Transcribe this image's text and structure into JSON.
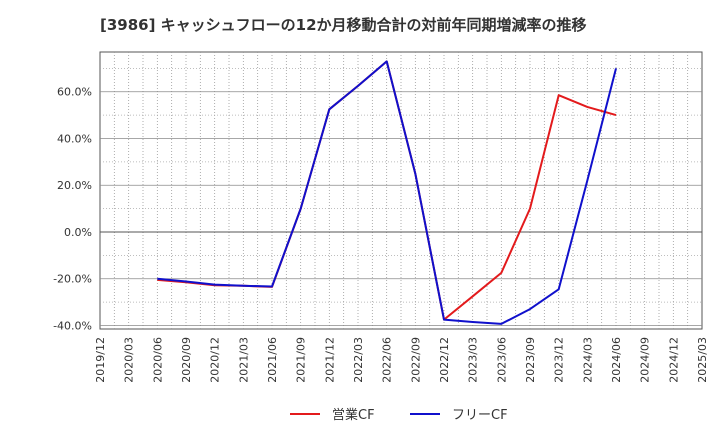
{
  "chart_data": {
    "type": "line",
    "title": "[3986]  キャッシュフローの12か月移動合計の対前年同期増減率の推移",
    "x_categories": [
      "2019/12",
      "2020/03",
      "2020/06",
      "2020/09",
      "2020/12",
      "2021/03",
      "2021/06",
      "2021/09",
      "2021/12",
      "2022/03",
      "2022/06",
      "2022/09",
      "2022/12",
      "2023/03",
      "2023/06",
      "2023/09",
      "2023/12",
      "2024/03",
      "2024/06",
      "2024/09",
      "2024/12",
      "2025/03"
    ],
    "y_tick_labels": [
      "-40.0%",
      "-20.0%",
      "0.0%",
      "20.0%",
      "40.0%",
      "60.0%"
    ],
    "y_ticks": [
      -40,
      -20,
      0,
      20,
      40,
      60
    ],
    "ylim": [
      -41.5,
      77
    ],
    "grid": true,
    "legend_position": "bottom-center",
    "series": [
      {
        "name": "営業CF",
        "color": "#e31a1c",
        "points": [
          {
            "x": "2020/06",
            "y": -20.5
          },
          {
            "x": "2020/09",
            "y": -21.5
          },
          {
            "x": "2020/12",
            "y": -22.8
          },
          {
            "x": "2021/03",
            "y": -23.0
          },
          {
            "x": "2021/06",
            "y": -23.5
          },
          {
            "x": "2021/09",
            "y": 10.0
          },
          {
            "x": "2021/12",
            "y": 52.5
          },
          {
            "x": "2022/03",
            "y": 62.5
          },
          {
            "x": "2022/06",
            "y": 73.0
          },
          {
            "x": "2022/09",
            "y": 25.0
          },
          {
            "x": "2022/12",
            "y": -37.5
          },
          {
            "x": "2023/03",
            "y": -27.5
          },
          {
            "x": "2023/06",
            "y": -17.5
          },
          {
            "x": "2023/09",
            "y": 10.0
          },
          {
            "x": "2023/12",
            "y": 58.5
          },
          {
            "x": "2024/03",
            "y": 53.5
          },
          {
            "x": "2024/06",
            "y": 50.0
          }
        ]
      },
      {
        "name": "フリーCF",
        "color": "#1010cc",
        "points": [
          {
            "x": "2020/06",
            "y": -20.0
          },
          {
            "x": "2020/09",
            "y": -21.2
          },
          {
            "x": "2020/12",
            "y": -22.5
          },
          {
            "x": "2021/03",
            "y": -23.0
          },
          {
            "x": "2021/06",
            "y": -23.3
          },
          {
            "x": "2021/09",
            "y": 10.0
          },
          {
            "x": "2021/12",
            "y": 52.5
          },
          {
            "x": "2022/03",
            "y": 62.5
          },
          {
            "x": "2022/06",
            "y": 73.0
          },
          {
            "x": "2022/09",
            "y": 25.0
          },
          {
            "x": "2022/12",
            "y": -37.5
          },
          {
            "x": "2023/03",
            "y": -38.5
          },
          {
            "x": "2023/06",
            "y": -39.3
          },
          {
            "x": "2023/09",
            "y": -33.0
          },
          {
            "x": "2023/12",
            "y": -24.5
          },
          {
            "x": "2024/03",
            "y": 22.0
          },
          {
            "x": "2024/06",
            "y": 70.0
          }
        ]
      }
    ]
  }
}
